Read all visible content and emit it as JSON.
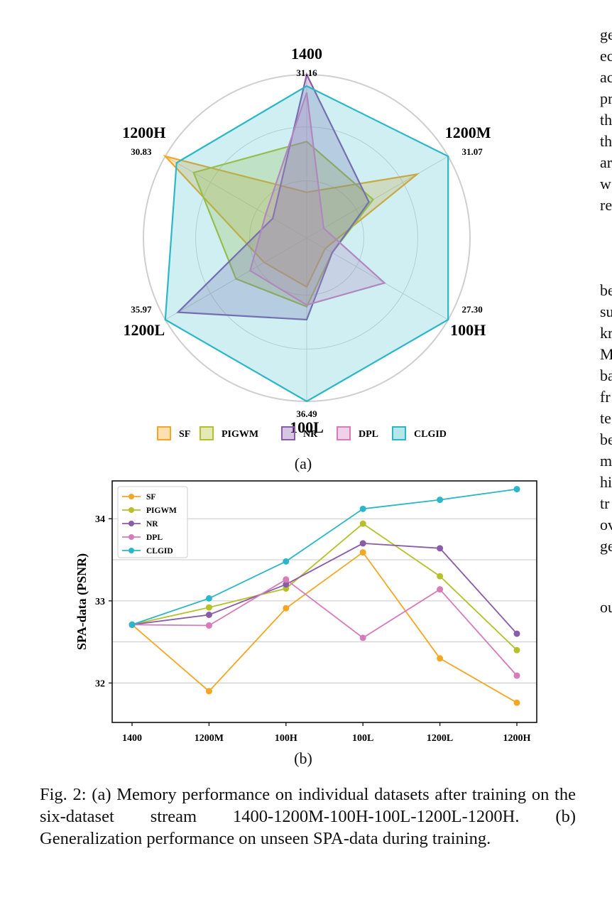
{
  "side_text": {
    "block1": [
      "ge",
      "ec",
      "ac",
      "pr",
      "th",
      "th",
      "ar",
      "w",
      "re"
    ],
    "block2": [
      "be",
      "su",
      "kr",
      "M",
      "ba",
      "fr",
      "te",
      "be",
      "m",
      "hi",
      "tr",
      "ov",
      "ge"
    ],
    "block3": [
      "ou"
    ]
  },
  "panel_a_label": "(a)",
  "panel_b_label": "(b)",
  "caption": "Fig. 2: (a) Memory performance on individual datasets after training on the six-dataset stream 1400-1200M-100H-100L-1200L-1200H. (b) Generalization performance on unseen SPA-data during training.",
  "chart_data": [
    {
      "type": "radar",
      "axes": [
        "1400",
        "1200M",
        "100H",
        "100L",
        "1200L",
        "1200H"
      ],
      "axis_max_labels": [
        "31.16",
        "31.07",
        "27.30",
        "36.49",
        "35.97",
        "30.83"
      ],
      "grid": true,
      "legend_placement": "bottom",
      "series": [
        {
          "name": "SF",
          "color": "#f5a623",
          "values": [
            0.28,
            0.78,
            0.13,
            0.3,
            0.3,
            1.0
          ]
        },
        {
          "name": "PIGWM",
          "color": "#b5c12a",
          "values": [
            0.59,
            0.47,
            0.18,
            0.42,
            0.5,
            0.8
          ]
        },
        {
          "name": "NR",
          "color": "#8a5ca8",
          "values": [
            1.0,
            0.44,
            0.18,
            0.5,
            0.91,
            0.24
          ]
        },
        {
          "name": "DPL",
          "color": "#d67bbb",
          "values": [
            0.89,
            0.12,
            0.55,
            0.41,
            0.4,
            0.29
          ]
        },
        {
          "name": "CLGID",
          "color": "#2bb7c8",
          "values": [
            0.93,
            1.0,
            1.0,
            1.0,
            1.0,
            0.92
          ]
        }
      ]
    },
    {
      "type": "line",
      "categories": [
        "1400",
        "1200M",
        "100H",
        "100L",
        "1200L",
        "1200H"
      ],
      "ylabel": "SPA-data (PSNR)",
      "xlabel": "",
      "ylim": [
        31.52,
        34.46
      ],
      "yticks": [
        "32",
        "33",
        "34"
      ],
      "grid": true,
      "legend_placement": "top-left",
      "series": [
        {
          "name": "SF",
          "color": "#f5a623",
          "values": [
            32.71,
            31.9,
            32.91,
            33.59,
            32.3,
            31.76
          ]
        },
        {
          "name": "PIGWM",
          "color": "#b5c12a",
          "values": [
            32.71,
            32.92,
            33.15,
            33.94,
            33.3,
            32.4
          ]
        },
        {
          "name": "NR",
          "color": "#8a5ca8",
          "values": [
            32.71,
            32.83,
            33.2,
            33.7,
            33.64,
            32.6
          ]
        },
        {
          "name": "DPL",
          "color": "#d67bbb",
          "values": [
            32.71,
            32.7,
            33.26,
            32.55,
            33.14,
            32.09
          ]
        },
        {
          "name": "CLGID",
          "color": "#2bb7c8",
          "values": [
            32.71,
            33.03,
            33.48,
            34.12,
            34.23,
            34.36
          ]
        }
      ]
    }
  ]
}
